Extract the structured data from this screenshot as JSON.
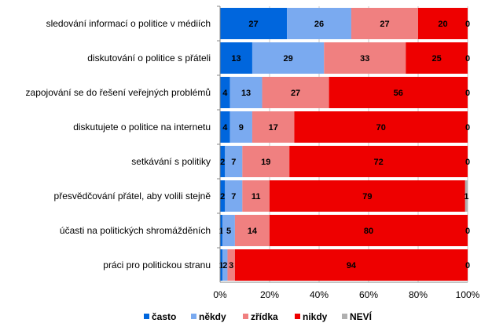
{
  "chart_data": {
    "type": "bar",
    "orientation": "horizontal",
    "stacked": "percent",
    "categories": [
      "sledování informací o politice v médiích",
      "diskutování o politice s přáteli",
      "zapojování se do řešení veřejných problémů",
      "diskutujete o politice na internetu",
      "setkávání s politiky",
      "přesvědčování přátel, aby volili stejně",
      "účasti na politických shromážděních",
      "práci pro politickou stranu"
    ],
    "series": [
      {
        "name": "často",
        "color": "#0066dd",
        "values": [
          27,
          13,
          4,
          4,
          2,
          2,
          1,
          1
        ]
      },
      {
        "name": "někdy",
        "color": "#7aaaf0",
        "values": [
          26,
          29,
          13,
          9,
          7,
          7,
          5,
          2
        ]
      },
      {
        "name": "zřídka",
        "color": "#f08080",
        "values": [
          27,
          33,
          27,
          17,
          19,
          11,
          14,
          3
        ]
      },
      {
        "name": "nikdy",
        "color": "#ee0000",
        "values": [
          20,
          25,
          56,
          70,
          72,
          79,
          80,
          94
        ]
      },
      {
        "name": "NEVÍ",
        "color": "#b0b0b0",
        "values": [
          0,
          0,
          0,
          0,
          0,
          1,
          0,
          0
        ]
      }
    ],
    "xlim": [
      0,
      100
    ],
    "xticks": [
      "0%",
      "20%",
      "40%",
      "60%",
      "80%",
      "100%"
    ],
    "grid": true,
    "legend": "bottom"
  }
}
